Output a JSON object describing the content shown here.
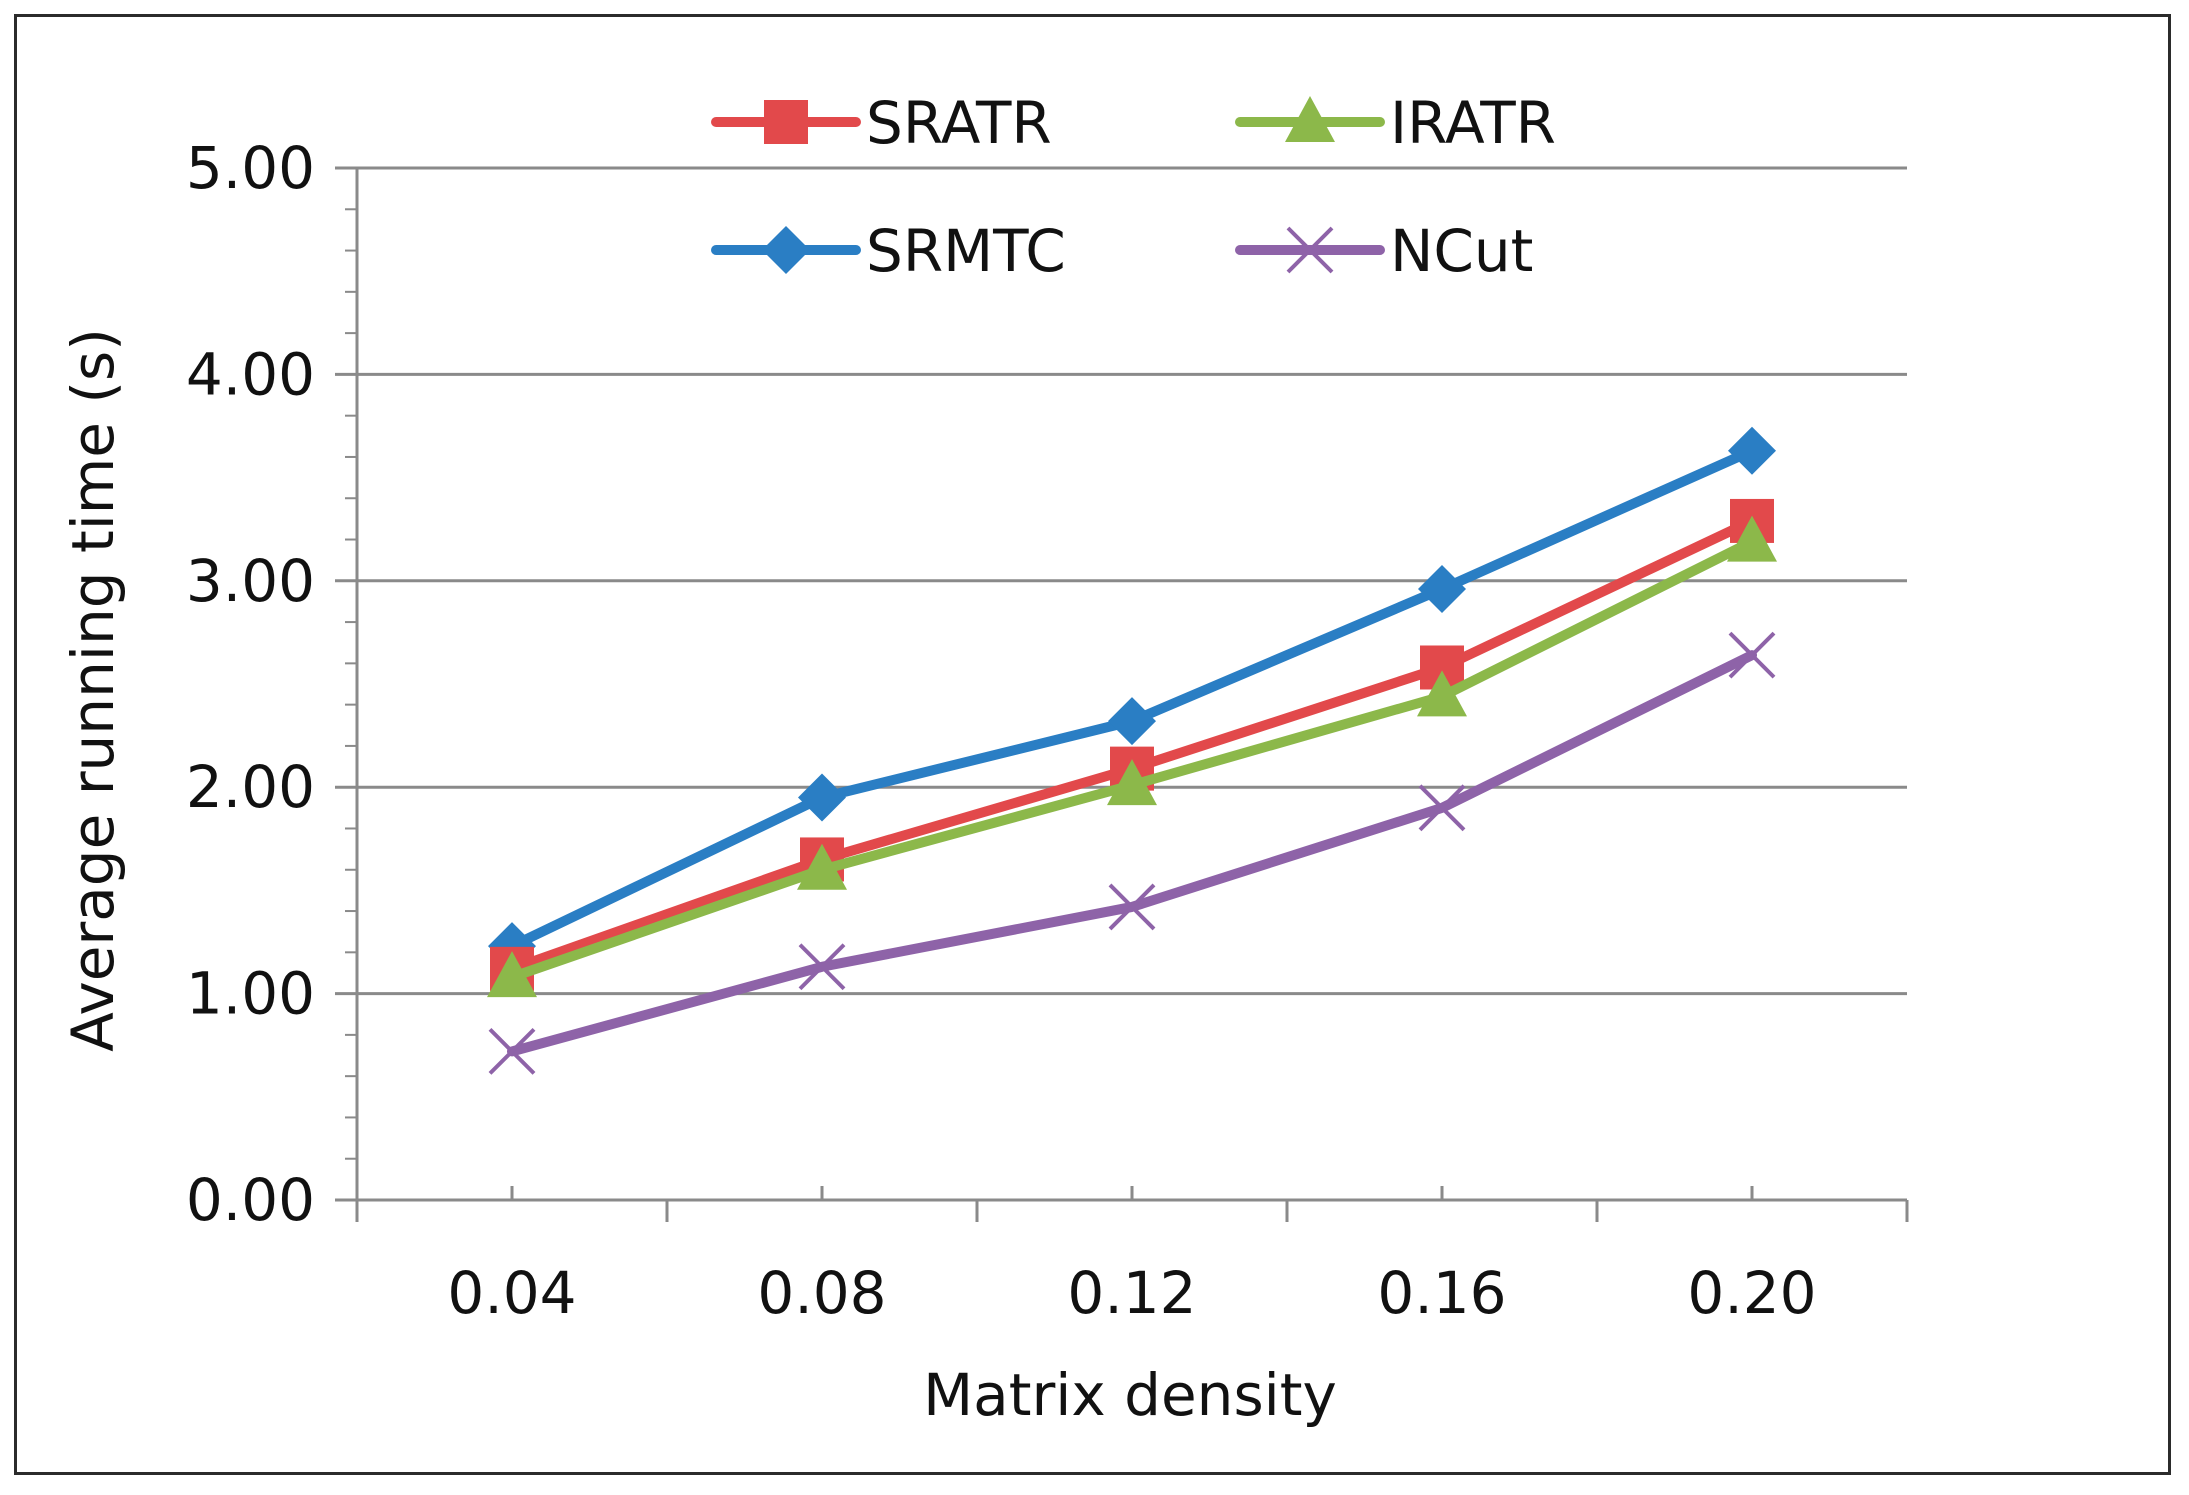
{
  "chart_data": {
    "type": "line",
    "title": "",
    "xlabel": "Matrix density",
    "ylabel": "Average running time (s)",
    "categories": [
      "0.04",
      "0.08",
      "0.12",
      "0.16",
      "0.20"
    ],
    "yticks": [
      "0.00",
      "1.00",
      "2.00",
      "3.00",
      "4.00",
      "5.00"
    ],
    "ylim": [
      0,
      5
    ],
    "grid": true,
    "legend_position": "top",
    "series": [
      {
        "name": "SRATR",
        "color": "#e2494b",
        "marker": "square",
        "values": [
          1.12,
          1.65,
          2.09,
          2.58,
          3.29
        ]
      },
      {
        "name": "IRATR",
        "color": "#8cb84a",
        "marker": "triangle",
        "values": [
          1.08,
          1.6,
          2.01,
          2.44,
          3.19
        ]
      },
      {
        "name": "SRMTC",
        "color": "#2a7ec4",
        "marker": "diamond",
        "values": [
          1.23,
          1.95,
          2.32,
          2.96,
          3.63
        ]
      },
      {
        "name": "NCut",
        "color": "#8e63a8",
        "marker": "x",
        "values": [
          0.72,
          1.13,
          1.42,
          1.9,
          2.64
        ]
      }
    ]
  }
}
